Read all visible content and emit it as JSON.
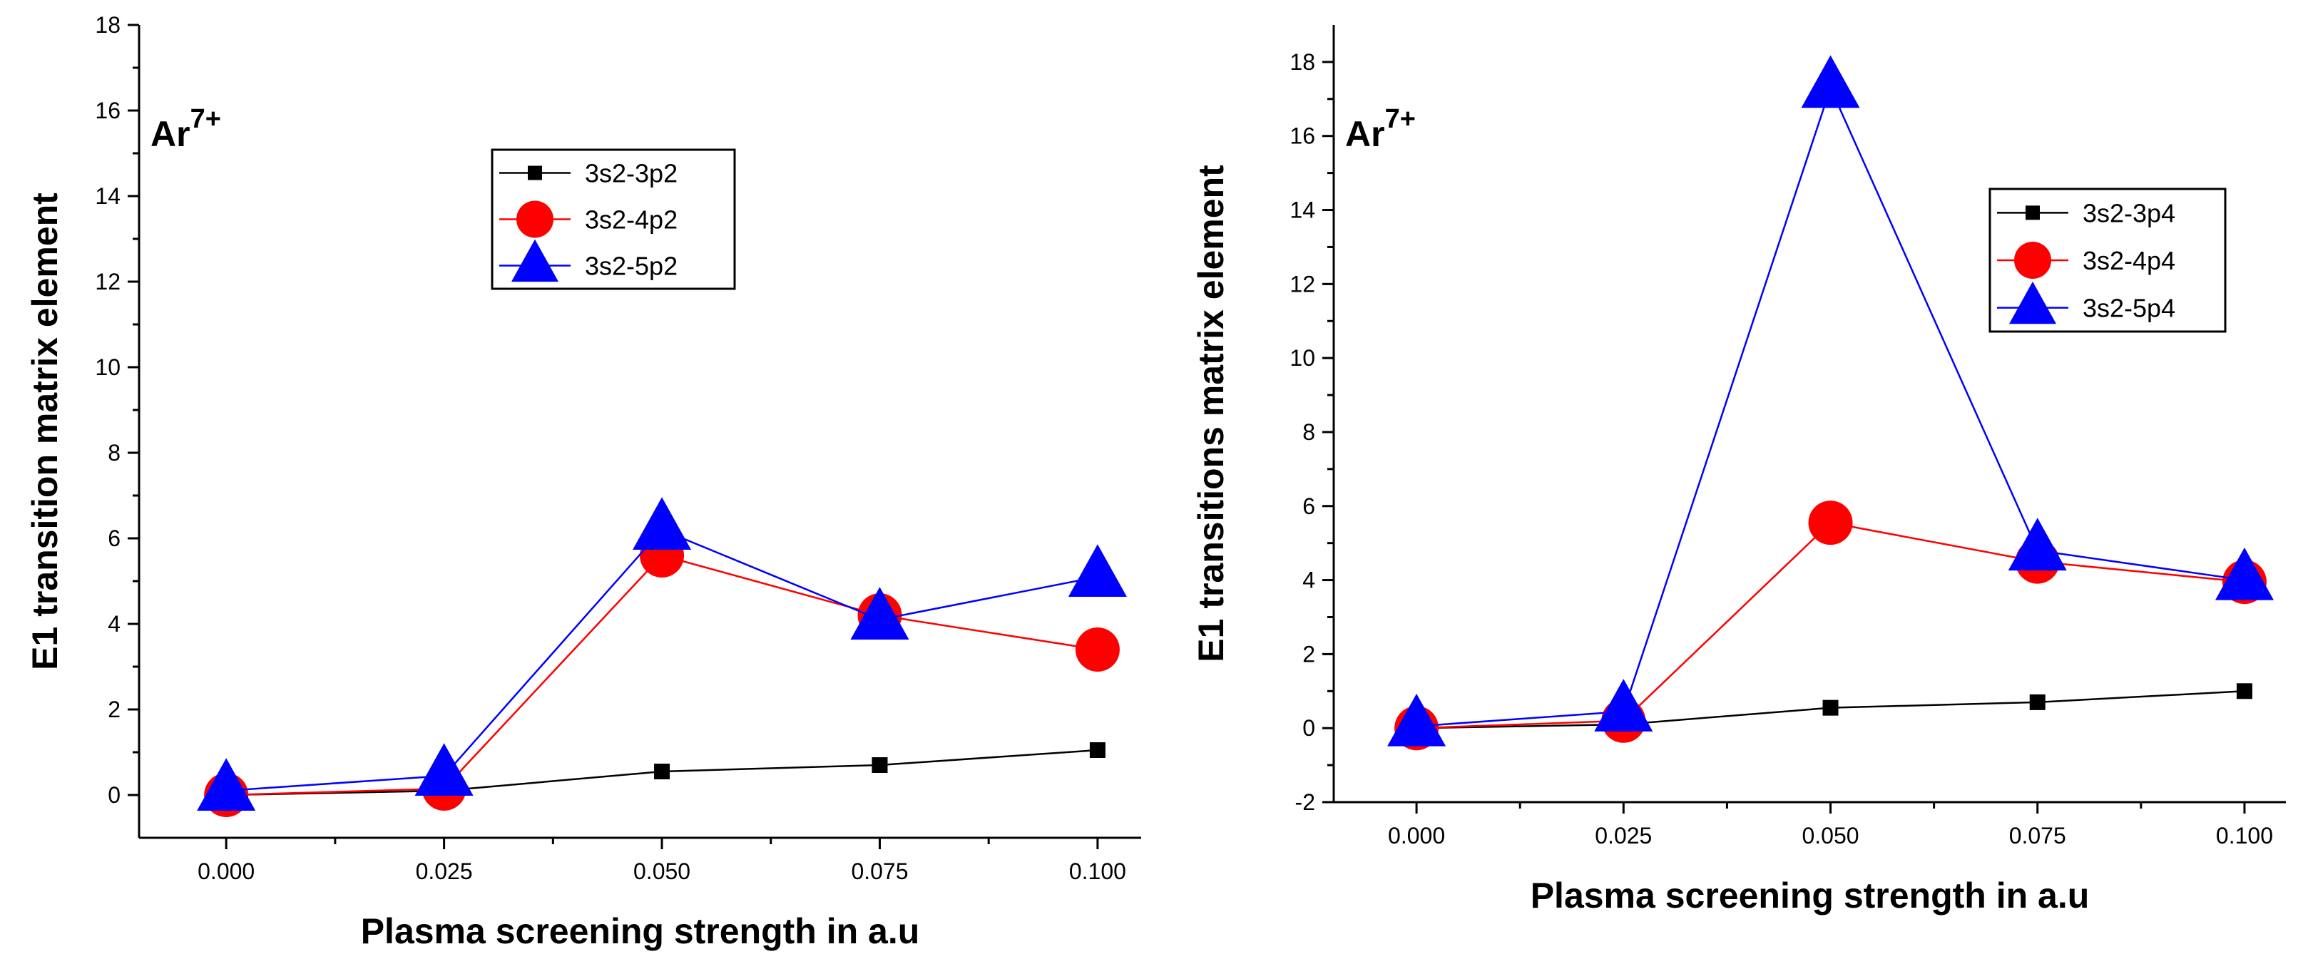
{
  "chart_data": [
    {
      "type": "line",
      "ion_label": "Ar",
      "ion_charge": "7+",
      "xlabel": "Plasma screening strength in a.u",
      "ylabel": "E1 transition matrix element",
      "x": [
        0.0,
        0.025,
        0.05,
        0.075,
        0.1
      ],
      "x_tick_labels": [
        "0.000",
        "0.025",
        "0.050",
        "0.075",
        "0.100"
      ],
      "xlim": [
        -0.01,
        0.105
      ],
      "ylim": [
        -1,
        18
      ],
      "y_ticks": [
        0,
        2,
        4,
        6,
        8,
        10,
        12,
        14,
        16,
        18
      ],
      "y_tick_labels": [
        "0",
        "2",
        "4",
        "6",
        "8",
        "10",
        "12",
        "14",
        "16",
        "18"
      ],
      "series": [
        {
          "name": "3s2-3p2",
          "color": "#000000",
          "marker": "square",
          "values": [
            0.0,
            0.1,
            0.55,
            0.7,
            1.05
          ]
        },
        {
          "name": "3s2-4p2",
          "color": "#ff0000",
          "marker": "circle",
          "values": [
            0.0,
            0.15,
            5.6,
            4.2,
            3.4
          ]
        },
        {
          "name": "3s2-5p2",
          "color": "#0000ff",
          "marker": "triangle",
          "values": [
            0.1,
            0.45,
            6.2,
            4.1,
            5.1
          ]
        }
      ],
      "legend_position": "upper-middle"
    },
    {
      "type": "line",
      "ion_label": "Ar",
      "ion_charge": "7+",
      "xlabel": "Plasma screening strength in a.u",
      "ylabel": "E1 transitions matrix element",
      "x": [
        0.0,
        0.025,
        0.05,
        0.075,
        0.1
      ],
      "x_tick_labels": [
        "0.000",
        "0.025",
        "0.050",
        "0.075",
        "0.100"
      ],
      "xlim": [
        -0.01,
        0.105
      ],
      "ylim": [
        -2,
        19
      ],
      "y_ticks": [
        -2,
        0,
        2,
        4,
        6,
        8,
        10,
        12,
        14,
        16,
        18
      ],
      "y_tick_labels": [
        "-2",
        "0",
        "2",
        "4",
        "6",
        "8",
        "10",
        "12",
        "14",
        "16",
        "18"
      ],
      "series": [
        {
          "name": "3s2-3p4",
          "color": "#000000",
          "marker": "square",
          "values": [
            0.0,
            0.1,
            0.55,
            0.7,
            1.0
          ]
        },
        {
          "name": "3s2-4p4",
          "color": "#ff0000",
          "marker": "circle",
          "values": [
            0.0,
            0.2,
            5.55,
            4.5,
            3.95
          ]
        },
        {
          "name": "3s2-5p4",
          "color": "#0000ff",
          "marker": "triangle",
          "values": [
            0.05,
            0.45,
            17.3,
            4.8,
            4.0
          ]
        }
      ],
      "legend_position": "upper-right"
    }
  ]
}
